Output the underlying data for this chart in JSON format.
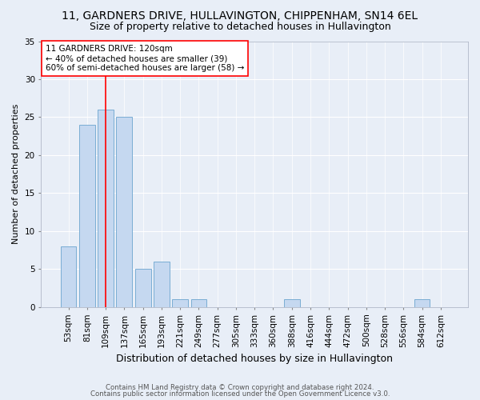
{
  "title": "11, GARDNERS DRIVE, HULLAVINGTON, CHIPPENHAM, SN14 6EL",
  "subtitle": "Size of property relative to detached houses in Hullavington",
  "xlabel": "Distribution of detached houses by size in Hullavington",
  "ylabel": "Number of detached properties",
  "categories": [
    "53sqm",
    "81sqm",
    "109sqm",
    "137sqm",
    "165sqm",
    "193sqm",
    "221sqm",
    "249sqm",
    "277sqm",
    "305sqm",
    "333sqm",
    "360sqm",
    "388sqm",
    "416sqm",
    "444sqm",
    "472sqm",
    "500sqm",
    "528sqm",
    "556sqm",
    "584sqm",
    "612sqm"
  ],
  "values": [
    8,
    24,
    26,
    25,
    5,
    6,
    1,
    1,
    0,
    0,
    0,
    0,
    1,
    0,
    0,
    0,
    0,
    0,
    0,
    1,
    0
  ],
  "bar_color": "#c5d8f0",
  "bar_edge_color": "#7aadd4",
  "annotation_text": "11 GARDNERS DRIVE: 120sqm\n← 40% of detached houses are smaller (39)\n60% of semi-detached houses are larger (58) →",
  "annotation_box_color": "white",
  "annotation_box_edge_color": "red",
  "red_line_color": "red",
  "red_line_x": 2.0,
  "ylim": [
    0,
    35
  ],
  "yticks": [
    0,
    5,
    10,
    15,
    20,
    25,
    30,
    35
  ],
  "footer1": "Contains HM Land Registry data © Crown copyright and database right 2024.",
  "footer2": "Contains public sector information licensed under the Open Government Licence v3.0.",
  "bg_color": "#e8eef7",
  "plot_bg_color": "#e8eef7",
  "title_fontsize": 10,
  "subtitle_fontsize": 9,
  "ylabel_fontsize": 8,
  "xlabel_fontsize": 9,
  "tick_fontsize": 7.5,
  "annotation_fontsize": 7.5,
  "footer_fontsize": 6.2
}
